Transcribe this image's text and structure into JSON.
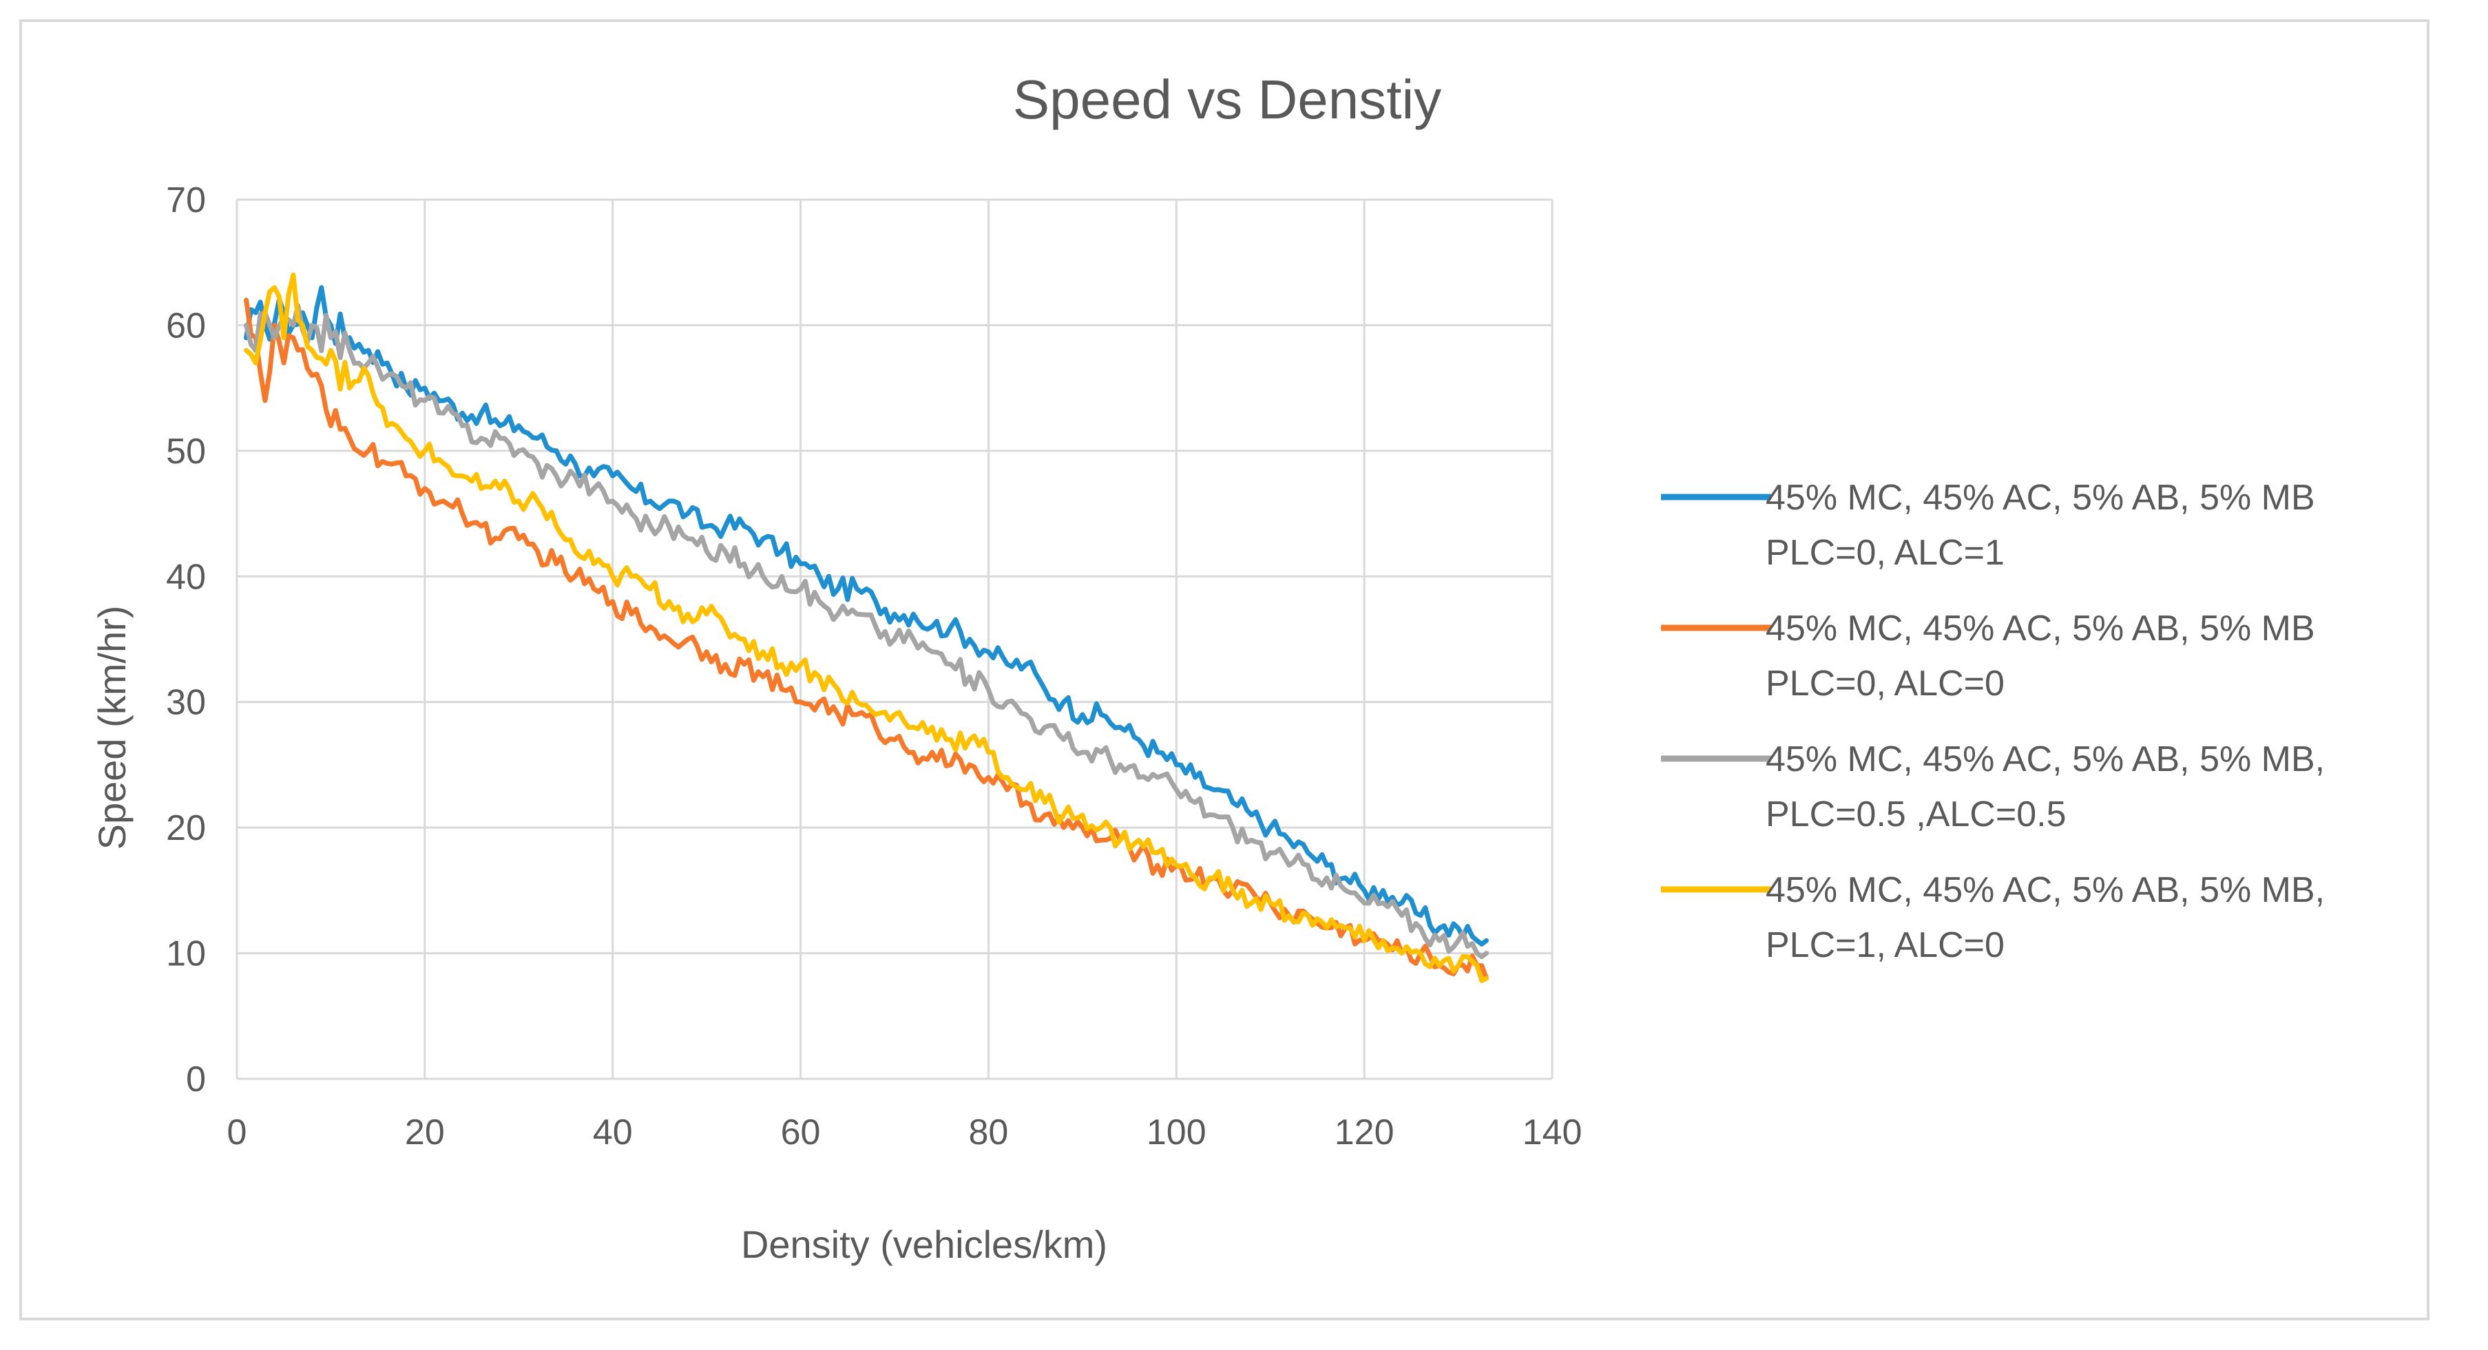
{
  "chart_data": {
    "type": "line",
    "title": "Speed vs Denstiy",
    "xlabel": "Density (vehicles/km)",
    "ylabel": "Speed (km/hr)",
    "xlim": [
      0,
      140
    ],
    "ylim": [
      0,
      70
    ],
    "xticks": [
      0,
      20,
      40,
      60,
      80,
      100,
      120,
      140
    ],
    "yticks": [
      0,
      10,
      20,
      30,
      40,
      50,
      60,
      70
    ],
    "grid": true,
    "legend_position": "right",
    "series": [
      {
        "name": "45% MC, 45% AC, 5% AB, 5% MB PLC=0, ALC=1",
        "legend_lines": [
          "45% MC, 45% AC, 5% AB, 5% MB",
          "PLC=0, ALC=1"
        ],
        "color": "#1f8fd0",
        "points": [
          [
            1,
            59
          ],
          [
            2,
            61
          ],
          [
            3,
            60
          ],
          [
            5,
            61
          ],
          [
            6,
            60
          ],
          [
            7,
            61
          ],
          [
            8,
            59
          ],
          [
            9,
            63
          ],
          [
            10,
            60
          ],
          [
            12,
            59
          ],
          [
            14,
            58
          ],
          [
            16,
            57
          ],
          [
            18,
            55
          ],
          [
            20,
            55
          ],
          [
            22,
            54
          ],
          [
            24,
            53
          ],
          [
            26,
            53
          ],
          [
            28,
            52
          ],
          [
            30,
            52
          ],
          [
            32,
            51
          ],
          [
            34,
            50
          ],
          [
            36,
            49
          ],
          [
            38,
            48
          ],
          [
            40,
            48
          ],
          [
            42,
            47
          ],
          [
            44,
            46
          ],
          [
            46,
            46
          ],
          [
            48,
            45
          ],
          [
            50,
            44
          ],
          [
            52,
            44
          ],
          [
            54,
            44
          ],
          [
            56,
            43
          ],
          [
            58,
            42
          ],
          [
            60,
            41
          ],
          [
            62,
            40
          ],
          [
            64,
            39
          ],
          [
            66,
            39
          ],
          [
            68,
            38
          ],
          [
            70,
            37
          ],
          [
            72,
            37
          ],
          [
            74,
            36
          ],
          [
            76,
            36
          ],
          [
            78,
            35
          ],
          [
            80,
            34
          ],
          [
            82,
            33
          ],
          [
            84,
            33
          ],
          [
            86,
            31
          ],
          [
            88,
            30
          ],
          [
            90,
            29
          ],
          [
            92,
            29
          ],
          [
            94,
            28
          ],
          [
            96,
            27
          ],
          [
            98,
            26
          ],
          [
            100,
            25
          ],
          [
            102,
            24
          ],
          [
            104,
            23
          ],
          [
            106,
            22
          ],
          [
            108,
            21
          ],
          [
            110,
            20
          ],
          [
            112,
            19
          ],
          [
            114,
            18
          ],
          [
            116,
            17
          ],
          [
            118,
            16
          ],
          [
            120,
            15
          ],
          [
            122,
            15
          ],
          [
            124,
            14
          ],
          [
            126,
            13
          ],
          [
            128,
            12
          ],
          [
            130,
            12
          ],
          [
            132,
            11
          ],
          [
            133,
            11
          ]
        ]
      },
      {
        "name": "45% MC, 45% AC, 5% AB, 5% MB PLC=0, ALC=0",
        "legend_lines": [
          "45% MC, 45% AC, 5% AB, 5% MB",
          "PLC=0, ALC=0"
        ],
        "color": "#f5792a",
        "points": [
          [
            1,
            62
          ],
          [
            2,
            59
          ],
          [
            3,
            54
          ],
          [
            4,
            60
          ],
          [
            5,
            57
          ],
          [
            6,
            59
          ],
          [
            8,
            56
          ],
          [
            10,
            52
          ],
          [
            12,
            51
          ],
          [
            14,
            50
          ],
          [
            16,
            49
          ],
          [
            18,
            48
          ],
          [
            20,
            47
          ],
          [
            22,
            46
          ],
          [
            24,
            45
          ],
          [
            26,
            44
          ],
          [
            28,
            43
          ],
          [
            30,
            43
          ],
          [
            32,
            42
          ],
          [
            34,
            41
          ],
          [
            36,
            40
          ],
          [
            38,
            39
          ],
          [
            40,
            38
          ],
          [
            42,
            37
          ],
          [
            44,
            36
          ],
          [
            46,
            35
          ],
          [
            48,
            35
          ],
          [
            50,
            34
          ],
          [
            52,
            33
          ],
          [
            54,
            33
          ],
          [
            56,
            32
          ],
          [
            58,
            31
          ],
          [
            60,
            30
          ],
          [
            62,
            30
          ],
          [
            64,
            29
          ],
          [
            66,
            29
          ],
          [
            68,
            28
          ],
          [
            70,
            27
          ],
          [
            72,
            26
          ],
          [
            74,
            26
          ],
          [
            76,
            25
          ],
          [
            78,
            25
          ],
          [
            80,
            24
          ],
          [
            82,
            23
          ],
          [
            84,
            22
          ],
          [
            86,
            21
          ],
          [
            88,
            20
          ],
          [
            90,
            20
          ],
          [
            92,
            19
          ],
          [
            94,
            19
          ],
          [
            96,
            18
          ],
          [
            98,
            17
          ],
          [
            100,
            17
          ],
          [
            102,
            16
          ],
          [
            104,
            16
          ],
          [
            106,
            15
          ],
          [
            108,
            15
          ],
          [
            110,
            14
          ],
          [
            112,
            13
          ],
          [
            114,
            13
          ],
          [
            116,
            12
          ],
          [
            118,
            12
          ],
          [
            120,
            11
          ],
          [
            122,
            11
          ],
          [
            124,
            10
          ],
          [
            126,
            10
          ],
          [
            128,
            9
          ],
          [
            130,
            9
          ],
          [
            132,
            9
          ],
          [
            133,
            8
          ]
        ]
      },
      {
        "name": "45% MC, 45% AC, 5% AB, 5% MB, PLC=0.5 ,ALC=0.5",
        "legend_lines": [
          "45% MC, 45% AC, 5% AB, 5% MB,",
          "PLC=0.5 ,ALC=0.5"
        ],
        "color": "#a5a5a5",
        "points": [
          [
            1,
            60
          ],
          [
            2,
            58
          ],
          [
            3,
            61
          ],
          [
            4,
            59
          ],
          [
            6,
            60
          ],
          [
            8,
            60
          ],
          [
            10,
            59
          ],
          [
            12,
            58
          ],
          [
            14,
            57
          ],
          [
            16,
            56
          ],
          [
            18,
            55
          ],
          [
            20,
            54
          ],
          [
            22,
            53
          ],
          [
            24,
            52
          ],
          [
            26,
            51
          ],
          [
            28,
            51
          ],
          [
            30,
            50
          ],
          [
            32,
            49
          ],
          [
            34,
            48
          ],
          [
            36,
            48
          ],
          [
            38,
            47
          ],
          [
            40,
            46
          ],
          [
            42,
            45
          ],
          [
            44,
            44
          ],
          [
            46,
            44
          ],
          [
            48,
            43
          ],
          [
            50,
            42
          ],
          [
            52,
            42
          ],
          [
            54,
            41
          ],
          [
            56,
            40
          ],
          [
            58,
            40
          ],
          [
            60,
            39
          ],
          [
            62,
            38
          ],
          [
            64,
            37
          ],
          [
            66,
            37
          ],
          [
            68,
            36
          ],
          [
            70,
            35
          ],
          [
            72,
            35
          ],
          [
            74,
            34
          ],
          [
            76,
            33
          ],
          [
            78,
            32
          ],
          [
            80,
            31
          ],
          [
            82,
            30
          ],
          [
            84,
            29
          ],
          [
            86,
            28
          ],
          [
            88,
            27
          ],
          [
            90,
            26
          ],
          [
            92,
            26
          ],
          [
            94,
            25
          ],
          [
            96,
            24
          ],
          [
            98,
            24
          ],
          [
            100,
            23
          ],
          [
            102,
            22
          ],
          [
            104,
            21
          ],
          [
            106,
            20
          ],
          [
            108,
            19
          ],
          [
            110,
            18
          ],
          [
            112,
            17
          ],
          [
            114,
            17
          ],
          [
            116,
            16
          ],
          [
            118,
            15
          ],
          [
            120,
            14
          ],
          [
            122,
            14
          ],
          [
            124,
            13
          ],
          [
            126,
            12
          ],
          [
            128,
            11
          ],
          [
            130,
            11
          ],
          [
            132,
            10
          ],
          [
            133,
            10
          ]
        ]
      },
      {
        "name": "45% MC, 45% AC, 5% AB, 5% MB, PLC=1, ALC=0",
        "legend_lines": [
          "45% MC, 45% AC, 5% AB, 5% MB,",
          "PLC=1, ALC=0"
        ],
        "color": "#ffc000",
        "points": [
          [
            1,
            58
          ],
          [
            2,
            57
          ],
          [
            3,
            61
          ],
          [
            4,
            63
          ],
          [
            5,
            59
          ],
          [
            6,
            64
          ],
          [
            7,
            60
          ],
          [
            8,
            58
          ],
          [
            10,
            58
          ],
          [
            12,
            55
          ],
          [
            14,
            56
          ],
          [
            16,
            52
          ],
          [
            18,
            51
          ],
          [
            20,
            50
          ],
          [
            22,
            49
          ],
          [
            24,
            48
          ],
          [
            26,
            47
          ],
          [
            28,
            47
          ],
          [
            30,
            46
          ],
          [
            32,
            46
          ],
          [
            34,
            44
          ],
          [
            36,
            42
          ],
          [
            38,
            41
          ],
          [
            40,
            40
          ],
          [
            42,
            40
          ],
          [
            44,
            39
          ],
          [
            46,
            38
          ],
          [
            48,
            37
          ],
          [
            50,
            37
          ],
          [
            52,
            36
          ],
          [
            54,
            35
          ],
          [
            56,
            34
          ],
          [
            58,
            33
          ],
          [
            60,
            33
          ],
          [
            62,
            32
          ],
          [
            64,
            31
          ],
          [
            66,
            30
          ],
          [
            68,
            29
          ],
          [
            70,
            29
          ],
          [
            72,
            28
          ],
          [
            74,
            28
          ],
          [
            76,
            27
          ],
          [
            78,
            27
          ],
          [
            80,
            26
          ],
          [
            82,
            24
          ],
          [
            84,
            23
          ],
          [
            86,
            22
          ],
          [
            88,
            21
          ],
          [
            90,
            21
          ],
          [
            92,
            20
          ],
          [
            94,
            19
          ],
          [
            96,
            19
          ],
          [
            98,
            18
          ],
          [
            100,
            17
          ],
          [
            102,
            16
          ],
          [
            104,
            16
          ],
          [
            106,
            15
          ],
          [
            108,
            14
          ],
          [
            110,
            14
          ],
          [
            112,
            13
          ],
          [
            114,
            13
          ],
          [
            116,
            12
          ],
          [
            118,
            12
          ],
          [
            120,
            11
          ],
          [
            122,
            11
          ],
          [
            124,
            10
          ],
          [
            126,
            10
          ],
          [
            128,
            9
          ],
          [
            130,
            9
          ],
          [
            132,
            9
          ],
          [
            133,
            8
          ]
        ]
      }
    ]
  }
}
